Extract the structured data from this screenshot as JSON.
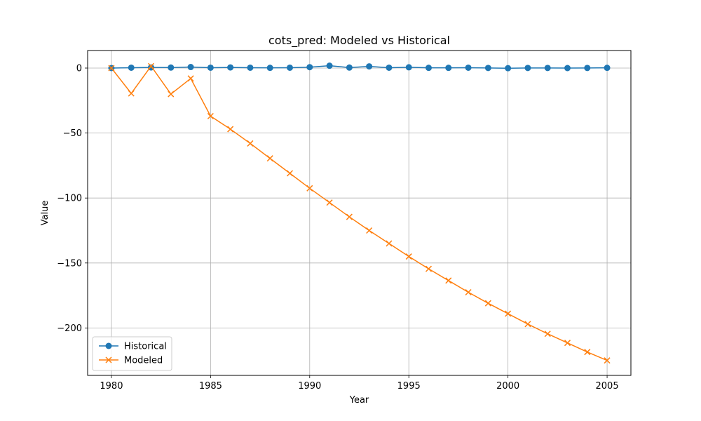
{
  "chart_data": {
    "type": "line",
    "title": "cots_pred: Modeled vs Historical",
    "xlabel": "Year",
    "ylabel": "Value",
    "xlim": [
      1978.8,
      2006.2
    ],
    "ylim": [
      -236.5,
      13.5
    ],
    "xticks": [
      1980,
      1985,
      1990,
      1995,
      2000,
      2005
    ],
    "yticks": [
      0,
      -50,
      -100,
      -150,
      -200
    ],
    "ytick_labels": [
      "0",
      "−50",
      "−100",
      "−150",
      "−200"
    ],
    "grid": true,
    "legend_position": "lower-left",
    "x": [
      1980,
      1981,
      1982,
      1983,
      1984,
      1985,
      1986,
      1987,
      1988,
      1989,
      1990,
      1991,
      1992,
      1993,
      1994,
      1995,
      1996,
      1997,
      1998,
      1999,
      2000,
      2001,
      2002,
      2003,
      2004,
      2005
    ],
    "series": [
      {
        "name": "Historical",
        "color": "#1f77b4",
        "marker": "circle",
        "values": [
          0,
          0.3,
          0.5,
          0.4,
          0.8,
          0.3,
          0.5,
          0.3,
          0.2,
          0.3,
          0.7,
          1.8,
          0.4,
          1.3,
          0.3,
          0.6,
          0.2,
          0.2,
          0.3,
          0.1,
          -0.1,
          0.1,
          0.1,
          0.0,
          0.1,
          0.2
        ]
      },
      {
        "name": "Modeled",
        "color": "#ff7f0e",
        "marker": "x",
        "values": [
          0,
          -19.5,
          1.5,
          -20,
          -8,
          -37,
          -47,
          -58,
          -69.5,
          -81,
          -92.5,
          -103.5,
          -114.5,
          -125,
          -135,
          -145,
          -154.5,
          -163.5,
          -172.5,
          -181,
          -189,
          -197,
          -204.5,
          -211.5,
          -218.5,
          -225
        ]
      }
    ]
  }
}
